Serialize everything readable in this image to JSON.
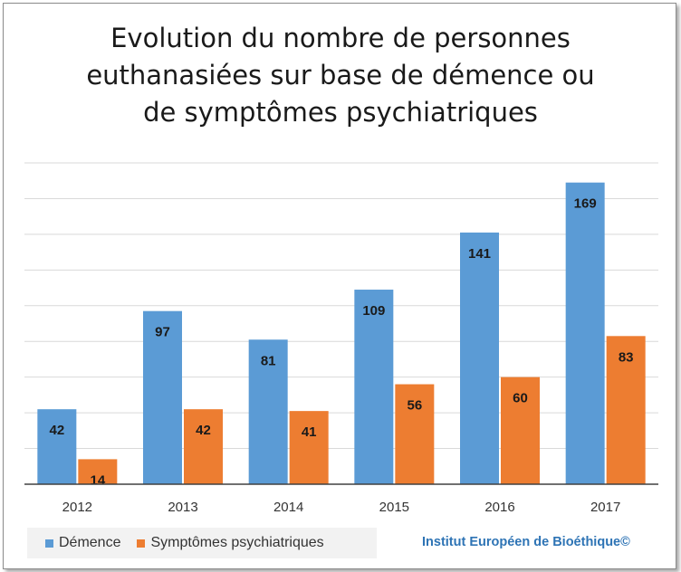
{
  "chart_data": {
    "type": "bar",
    "title_lines": [
      "Evolution du nombre de personnes",
      "euthanasiées sur base de démence ou",
      "de symptômes psychiatriques"
    ],
    "categories": [
      "2012",
      "2013",
      "2014",
      "2015",
      "2016",
      "2017"
    ],
    "series": [
      {
        "name": "Démence",
        "color": "#5b9bd5",
        "values": [
          42,
          97,
          81,
          109,
          141,
          169
        ]
      },
      {
        "name": "Symptômes psychiatriques",
        "color": "#ed7d31",
        "values": [
          14,
          42,
          41,
          56,
          60,
          83
        ]
      }
    ],
    "ylim": [
      0,
      180
    ],
    "grid": true,
    "legend": "bottom-left",
    "data_labels": true
  },
  "credit": "Institut Européen de Bioéthique©"
}
